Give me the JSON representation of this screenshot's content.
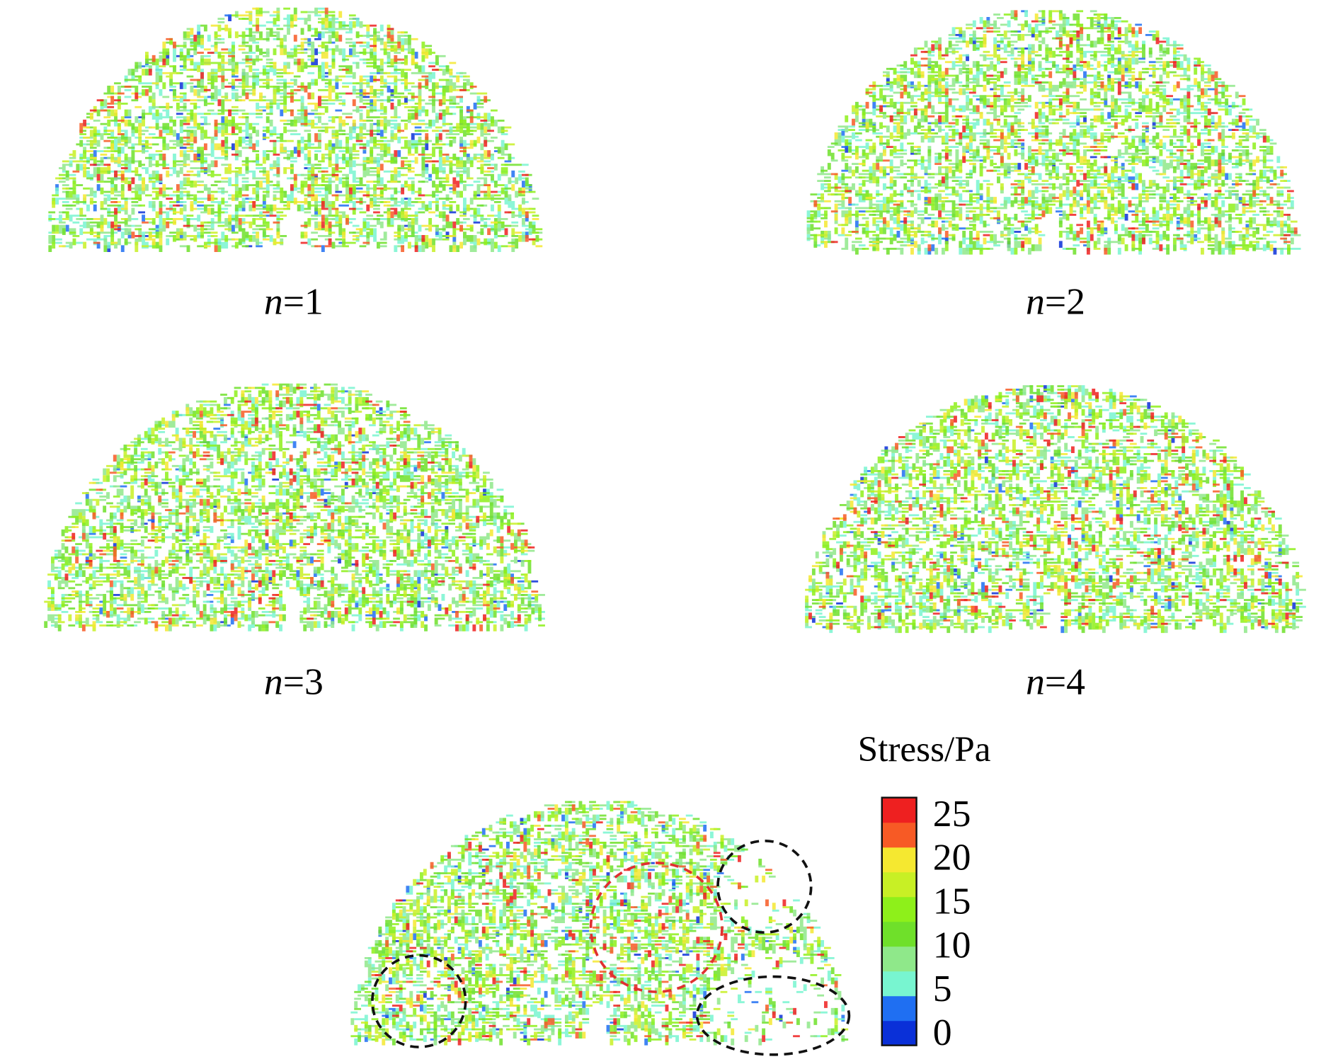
{
  "panels": [
    "n=1",
    "n=2",
    "n=3",
    "n=4"
  ],
  "colorbar": {
    "title": "Stress/Pa",
    "ticks": [
      0,
      5,
      10,
      15,
      20,
      25
    ],
    "range": [
      -1.5,
      26.8
    ],
    "colors": [
      "#0a30d8",
      "#1f6ff2",
      "#78f5d0",
      "#8fe88a",
      "#6fe02a",
      "#8ef01a",
      "#c8f025",
      "#f5e830",
      "#f75a25",
      "#ee2020"
    ]
  }
}
